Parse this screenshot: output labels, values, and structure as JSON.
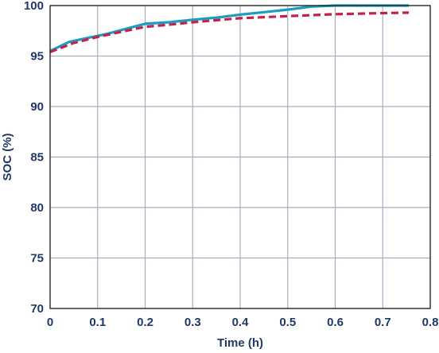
{
  "chart_data": {
    "type": "line",
    "title": "",
    "xlabel": "Time (h)",
    "ylabel": "SOC (%)",
    "xlim": [
      0,
      0.8
    ],
    "ylim": [
      70,
      100
    ],
    "x_ticks": [
      "0",
      "0.1",
      "0.2",
      "0.3",
      "0.4",
      "0.5",
      "0.6",
      "0.7",
      "0.8"
    ],
    "y_ticks": [
      "70",
      "75",
      "80",
      "85",
      "90",
      "95",
      "100"
    ],
    "grid": true,
    "legend": "none",
    "series": [
      {
        "color": "#1a9ec0",
        "style": "solid",
        "x": [
          0,
          0.04,
          0.08,
          0.12,
          0.16,
          0.2,
          0.25,
          0.3,
          0.35,
          0.4,
          0.45,
          0.5,
          0.55,
          0.6,
          0.65,
          0.7,
          0.755
        ],
        "y": [
          95.5,
          96.4,
          96.8,
          97.2,
          97.7,
          98.2,
          98.35,
          98.6,
          98.8,
          99.1,
          99.35,
          99.6,
          99.9,
          100,
          100,
          100,
          100
        ]
      },
      {
        "color": "#c4204a",
        "style": "dashed",
        "x": [
          0,
          0.05,
          0.1,
          0.15,
          0.2,
          0.25,
          0.3,
          0.35,
          0.4,
          0.45,
          0.5,
          0.55,
          0.6,
          0.65,
          0.7,
          0.755
        ],
        "y": [
          95.4,
          96.3,
          96.9,
          97.4,
          97.9,
          98.1,
          98.35,
          98.55,
          98.75,
          98.85,
          98.95,
          99.05,
          99.15,
          99.2,
          99.25,
          99.3
        ]
      }
    ]
  }
}
